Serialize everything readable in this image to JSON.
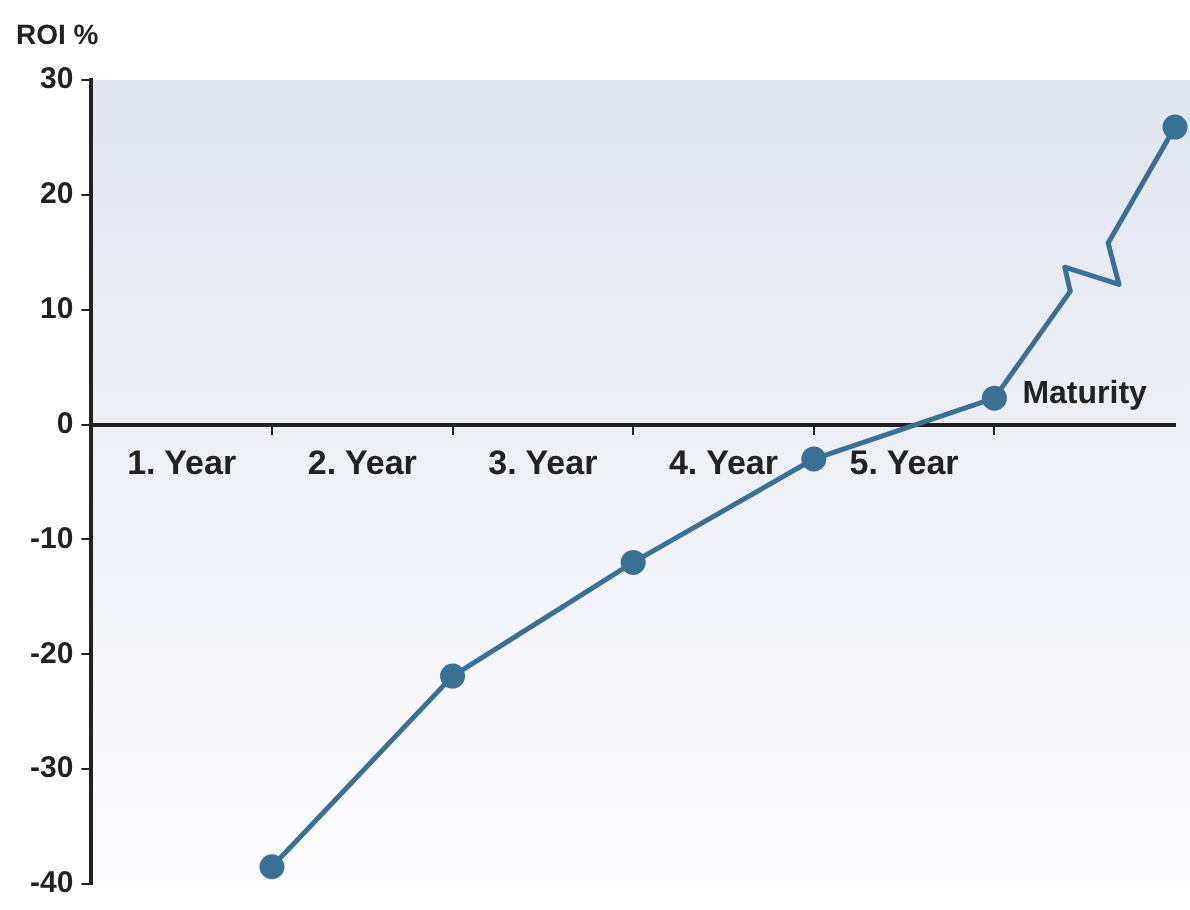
{
  "chart_data": {
    "type": "line",
    "ylabel": "ROI %",
    "xlim": [
      0,
      6
    ],
    "xticks": [
      {
        "value": 0.5,
        "label": "1. Year"
      },
      {
        "value": 1,
        "label": null
      },
      {
        "value": 1.5,
        "label": "2. Year"
      },
      {
        "value": 2,
        "label": null
      },
      {
        "value": 2.5,
        "label": "3. Year"
      },
      {
        "value": 3,
        "label": null
      },
      {
        "value": 3.5,
        "label": "4. Year"
      },
      {
        "value": 4,
        "label": null
      },
      {
        "value": 4.5,
        "label": "5. Year"
      },
      {
        "value": 5,
        "label": null
      }
    ],
    "ylim": [
      -40,
      30
    ],
    "yticks": [
      -40,
      -30,
      -20,
      -10,
      0,
      10,
      20,
      30
    ],
    "grid": false,
    "legend": false,
    "series": [
      {
        "color": "#3a6f96",
        "marker": "circle",
        "x": [
          1,
          2,
          3,
          4,
          5
        ],
        "values": [
          -38.5,
          -21.9,
          -12,
          -3,
          2.3
        ]
      },
      {
        "color": "#3a6f96",
        "marker": "none",
        "x": [
          5,
          5.42,
          5.39,
          5.69,
          5.63,
          6
        ],
        "values": [
          2.3,
          11.6,
          13.7,
          12.2,
          15.8,
          25.9
        ]
      },
      {
        "type": "scatter",
        "color": "#3a6f96",
        "marker": "circle",
        "x": [
          6
        ],
        "values": [
          25.9
        ]
      }
    ],
    "annotations": [
      {
        "text": "Maturity",
        "x": 5,
        "y": 2.3
      }
    ]
  }
}
